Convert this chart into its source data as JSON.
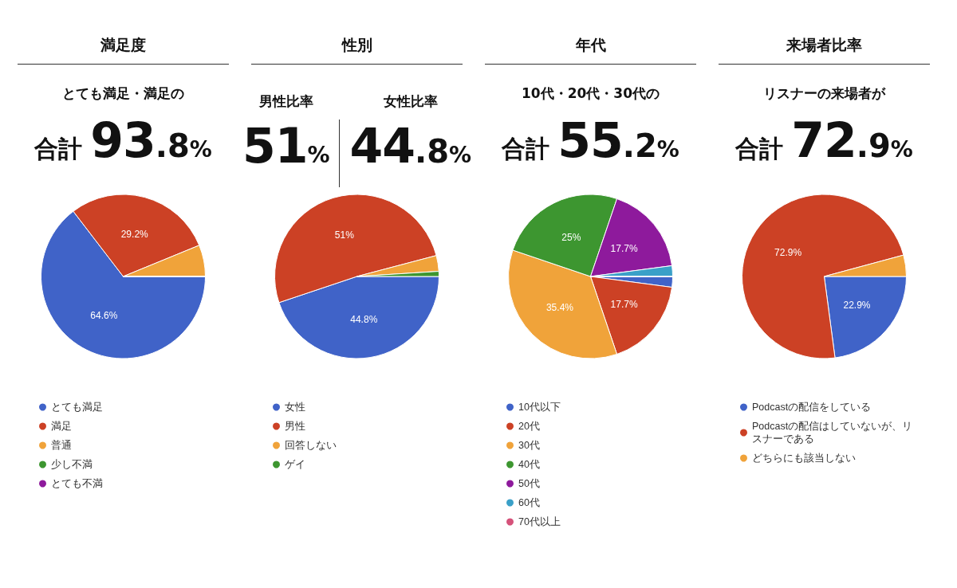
{
  "chart_data": [
    {
      "type": "pie",
      "title": "満足度",
      "subtitle": "とても満足・満足の",
      "annotations": [
        "合計93.8%"
      ],
      "categories": [
        "とても満足",
        "満足",
        "普通",
        "少し不満",
        "とても不満"
      ],
      "values": [
        64.6,
        29.2,
        6.2,
        0,
        0
      ],
      "colors": [
        "#4063c8",
        "#cc4125",
        "#f0a33a",
        "#3d9630",
        "#8e1a9c"
      ],
      "value_labels": [
        "64.6%",
        "29.2%",
        null,
        null,
        null
      ],
      "legend": "bottom"
    },
    {
      "type": "pie",
      "title": "性別",
      "annotations": [
        "男性比率 51%",
        "女性比率 44.8%"
      ],
      "categories": [
        "女性",
        "男性",
        "回答しない",
        "ゲイ"
      ],
      "values": [
        44.8,
        51,
        3.1,
        1.0
      ],
      "colors": [
        "#4063c8",
        "#cc4125",
        "#f0a33a",
        "#3d9630"
      ],
      "value_labels": [
        "44.8%",
        "51%",
        null,
        null
      ],
      "legend": "bottom"
    },
    {
      "type": "pie",
      "title": "年代",
      "subtitle": "10代・20代・30代の",
      "annotations": [
        "合計55.2%"
      ],
      "categories": [
        "10代以下",
        "20代",
        "30代",
        "40代",
        "50代",
        "60代",
        "70代以上"
      ],
      "values": [
        2.1,
        17.7,
        35.4,
        25,
        17.7,
        2.1,
        0
      ],
      "colors": [
        "#4063c8",
        "#cc4125",
        "#f0a33a",
        "#3d9630",
        "#8e1a9c",
        "#3aa0c8",
        "#d5527a"
      ],
      "value_labels": [
        null,
        "17.7%",
        "35.4%",
        "25%",
        "17.7%",
        null,
        null
      ],
      "legend": "bottom"
    },
    {
      "type": "pie",
      "title": "来場者比率",
      "subtitle": "リスナーの来場者が",
      "annotations": [
        "合計72.9%"
      ],
      "categories": [
        "Podcastの配信をしている",
        "Podcastの配信はしていないが、リスナーである",
        "どちらにも該当しない"
      ],
      "values": [
        22.9,
        72.9,
        4.2
      ],
      "colors": [
        "#4063c8",
        "#cc4125",
        "#f0a33a"
      ],
      "value_labels": [
        "22.9%",
        "72.9%",
        null
      ],
      "legend": "bottom"
    }
  ]
}
